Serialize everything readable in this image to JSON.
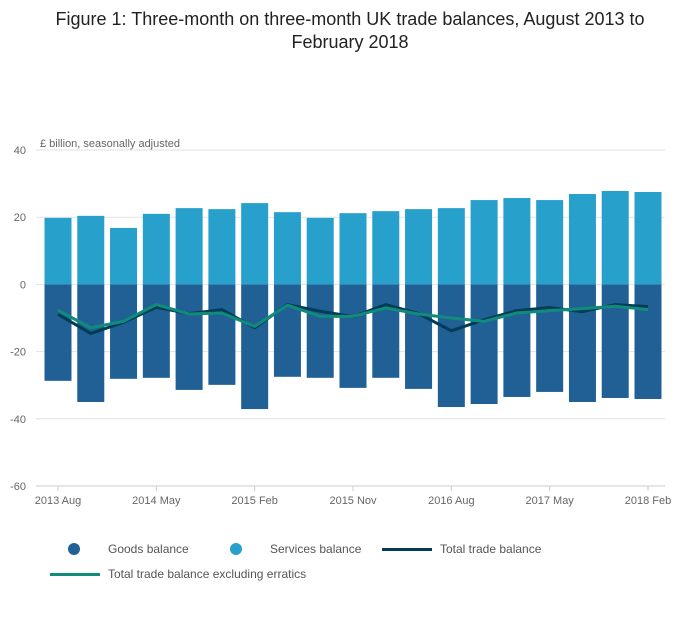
{
  "chart_data": {
    "type": "bar",
    "title": "Figure 1: Three-month on three-month UK trade balances, August 2013 to February 2018",
    "ylabel": "£ billion, seasonally adjusted",
    "ylim": [
      -60,
      40
    ],
    "yticks": [
      "40",
      "20",
      "0",
      "-20",
      "-40",
      "-60"
    ],
    "xtick_labels": [
      "2013 Aug",
      "2014 May",
      "2015 Feb",
      "2015 Nov",
      "2016 Aug",
      "2017 May",
      "2018 Feb"
    ],
    "categories": [
      "2013 Aug",
      "2013 Nov",
      "2014 Feb",
      "2014 May",
      "2014 Aug",
      "2014 Nov",
      "2015 Feb",
      "2015 May",
      "2015 Aug",
      "2015 Nov",
      "2016 Feb",
      "2016 May",
      "2016 Aug",
      "2016 Nov",
      "2017 Feb",
      "2017 May",
      "2017 Aug",
      "2017 Nov",
      "2018 Feb"
    ],
    "series": [
      {
        "name": "Goods balance",
        "type": "bar",
        "color": "#206095",
        "values": [
          -28.7,
          -35,
          -28.1,
          -27.8,
          -31.4,
          -29.9,
          -37.1,
          -27.5,
          -27.8,
          -30.8,
          -27.8,
          -31.1,
          -36.5,
          -35.6,
          -33.5,
          -32,
          -35,
          -33.8,
          -34.1
        ]
      },
      {
        "name": "Services balance",
        "type": "bar",
        "color": "#27a0cc",
        "values": [
          19.8,
          20.4,
          16.8,
          21,
          22.7,
          22.4,
          24.2,
          21.5,
          19.8,
          21.2,
          21.8,
          22.4,
          22.7,
          25.1,
          25.7,
          25.1,
          26.9,
          27.8,
          27.5
        ]
      },
      {
        "name": "Total trade balance",
        "type": "line",
        "color": "#003c57",
        "values": [
          -8.9,
          -14.6,
          -11.3,
          -6.8,
          -8.7,
          -7.5,
          -12.9,
          -6,
          -8,
          -9.6,
          -6,
          -8.7,
          -13.8,
          -10.5,
          -7.8,
          -6.9,
          -8.1,
          -6,
          -6.6
        ]
      },
      {
        "name": "Total trade balance excluding erratics",
        "type": "line",
        "color": "#118c7b",
        "values": [
          -7.7,
          -12.9,
          -11,
          -6,
          -8.8,
          -8.5,
          -12.5,
          -6.2,
          -9.5,
          -9.5,
          -7,
          -8.8,
          -10,
          -11,
          -8.5,
          -7.8,
          -7.2,
          -6.5,
          -7.5
        ]
      }
    ],
    "legend": "bottom"
  }
}
